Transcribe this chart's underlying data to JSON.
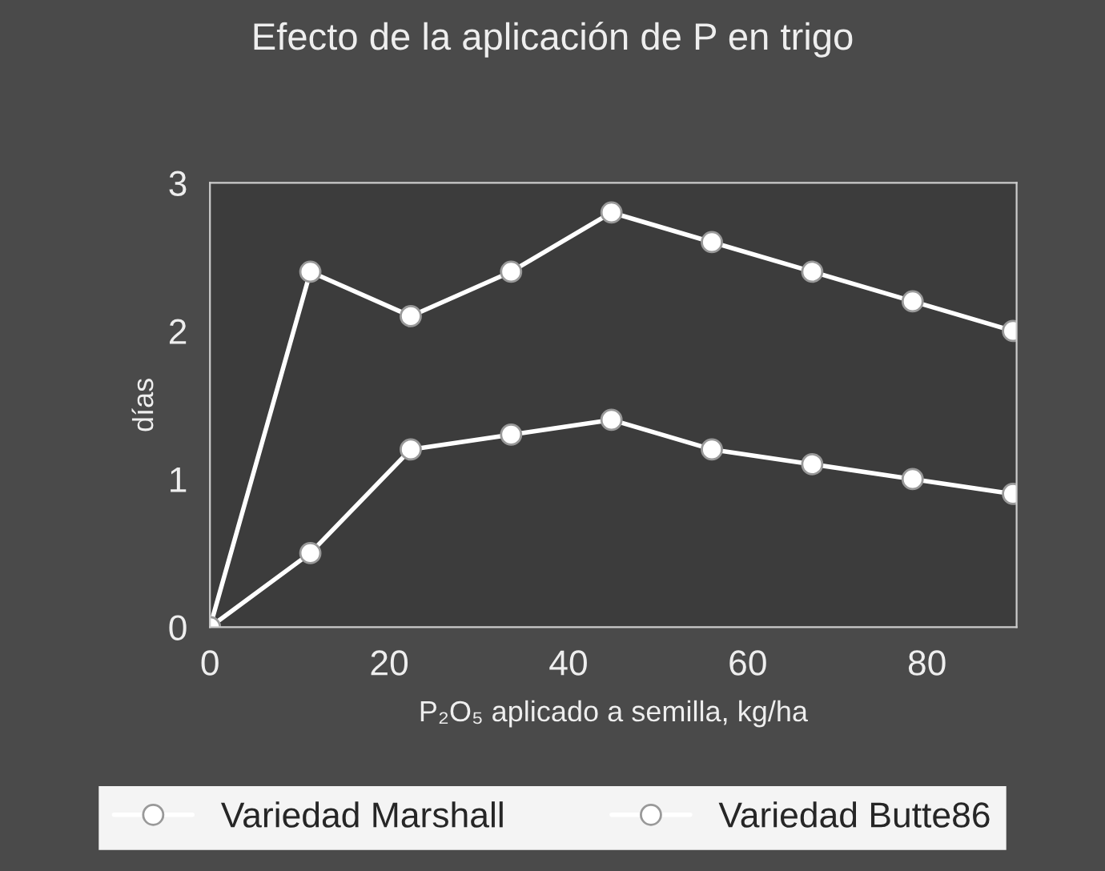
{
  "chart_data": {
    "type": "line",
    "title": "Efecto de la aplicación de P en trigo",
    "xlabel": "P₂O₅ aplicado a semilla, kg/ha",
    "ylabel": "días",
    "x": [
      0,
      11.2,
      22.4,
      33.6,
      44.8,
      56,
      67.2,
      78.4,
      89.6
    ],
    "series": [
      {
        "name": "Variedad Marshall",
        "color": "#ffffff",
        "values": [
          0,
          2.4,
          2.1,
          2.4,
          2.8,
          2.6,
          2.4,
          2.2,
          2.0
        ]
      },
      {
        "name": "Variedad Butte86",
        "color": "#ffffff",
        "values": [
          0,
          0.5,
          1.2,
          1.3,
          1.4,
          1.2,
          1.1,
          1.0,
          0.9
        ]
      }
    ],
    "xlim": [
      0,
      90
    ],
    "xticks": [
      0,
      20,
      40,
      60,
      80
    ],
    "ylim": [
      0,
      3
    ],
    "yticks": [
      0,
      1,
      2,
      3
    ],
    "grid": false,
    "legend": "bottom",
    "marker": "circle",
    "line_style": "solid"
  }
}
